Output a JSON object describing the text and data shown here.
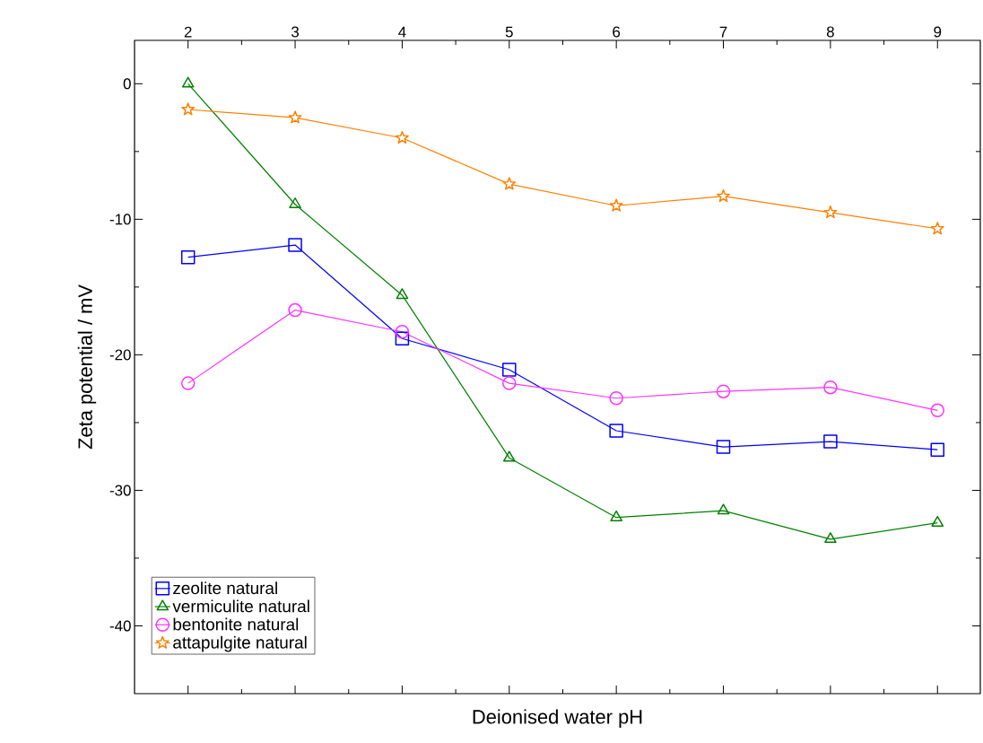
{
  "chart_data": {
    "type": "line",
    "xlabel": "Deionised water pH",
    "ylabel": "Zeta potential / mV",
    "x": [
      2,
      3,
      4,
      5,
      6,
      7,
      8,
      9
    ],
    "xlim": [
      1.5,
      9.4
    ],
    "ylim": [
      -45,
      3.2
    ],
    "xticks": [
      2,
      3,
      4,
      5,
      6,
      7,
      8,
      9
    ],
    "yticks": [
      -40,
      -30,
      -20,
      -10,
      0
    ],
    "grid": false,
    "legend": "bottom left",
    "series": [
      {
        "name": "zeolite natural",
        "color": "#0000ff",
        "marker": "square",
        "values": [
          -12.8,
          -11.9,
          -18.8,
          -21.1,
          -25.6,
          -26.8,
          -26.4,
          -27.0
        ]
      },
      {
        "name": "vermiculite natural",
        "color": "#008000",
        "marker": "triangle",
        "values": [
          0,
          -8.9,
          -15.6,
          -27.6,
          -32.0,
          -31.5,
          -33.6,
          -32.4
        ]
      },
      {
        "name": "bentonite natural",
        "color": "#ff33ff",
        "marker": "circle",
        "values": [
          -22.1,
          -16.7,
          -18.3,
          -22.1,
          -23.2,
          -22.7,
          -22.4,
          -24.1
        ]
      },
      {
        "name": "attapulgite natural",
        "color": "#ff8000",
        "marker": "star",
        "values": [
          -1.9,
          -2.5,
          -4.0,
          -7.4,
          -9.0,
          -8.3,
          -9.5,
          -10.7
        ]
      }
    ]
  }
}
